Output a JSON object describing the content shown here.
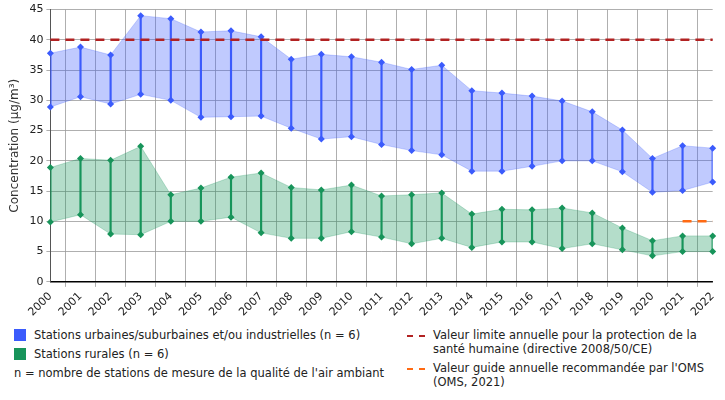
{
  "chart_data": {
    "type": "range_band",
    "y_label": "Concentration (µg/m³)",
    "categories": [
      "2000",
      "2001",
      "2002",
      "2003",
      "2004",
      "2005",
      "2006",
      "2007",
      "2008",
      "2009",
      "2010",
      "2011",
      "2012",
      "2013",
      "2014",
      "2015",
      "2016",
      "2017",
      "2018",
      "2019",
      "2020",
      "2021",
      "2022"
    ],
    "series": [
      {
        "name": "Stations urbaines/suburbaines et/ou industrielles (n = 6)",
        "color": "#3b5bfc",
        "marker": "diamond",
        "max": [
          37.8,
          38.8,
          37.5,
          44,
          43.5,
          41.3,
          41.5,
          40.5,
          36.8,
          37.6,
          37.2,
          36.3,
          35.1,
          35.8,
          31.6,
          31.2,
          30.7,
          29.9,
          28.1,
          25.1,
          20.4,
          22.5,
          22.1
        ],
        "min": [
          28.9,
          30.6,
          29.4,
          31,
          30,
          27.2,
          27.3,
          27.4,
          25.4,
          23.6,
          24,
          22.7,
          21.7,
          21,
          18.3,
          18.3,
          19.1,
          20,
          20,
          18.2,
          14.8,
          15.1,
          16.5
        ]
      },
      {
        "name": "Stations rurales (n = 6)",
        "color": "#17945a",
        "marker": "diamond",
        "max": [
          18.9,
          20.4,
          20.1,
          22.4,
          14.4,
          15.5,
          17.3,
          18,
          15.6,
          15.2,
          16,
          14.2,
          14.4,
          14.7,
          11.2,
          12,
          11.9,
          12.2,
          11.4,
          8.9,
          6.8,
          7.6,
          7.6
        ],
        "min": [
          9.9,
          11.1,
          7.9,
          7.8,
          10,
          10,
          10.7,
          8.1,
          7.2,
          7.2,
          8.3,
          7.4,
          6.3,
          7.2,
          5.7,
          6.6,
          6.6,
          5.5,
          6.3,
          5.3,
          4.3,
          5,
          5
        ]
      }
    ],
    "reference_lines": [
      {
        "name": "Valeur limite annuelle pour la protection de la santé humaine (directive 2008/50/CE)",
        "value": 40,
        "color": "#b22222",
        "line_style": "dashed",
        "from": "2000",
        "to": "2022"
      },
      {
        "name": "Valeur guide annuelle recommandée par l'OMS (OMS, 2021)",
        "value": 10,
        "color": "#ff6a13",
        "line_style": "dashed",
        "from": "2021",
        "to": "2022"
      }
    ],
    "note": "n = nombre de stations de mesure de la qualité de l'air ambiant",
    "ylim": [
      0,
      45
    ],
    "yticks": [
      0,
      5,
      10,
      15,
      20,
      25,
      30,
      35,
      40,
      45
    ],
    "grid": true,
    "legend": "bottom"
  }
}
